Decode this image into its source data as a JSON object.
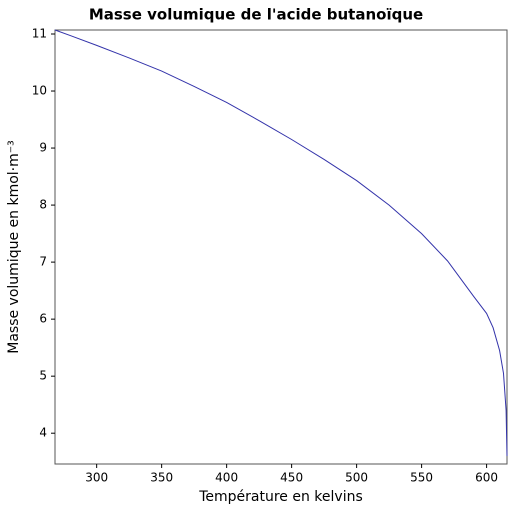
{
  "chart_data": {
    "type": "line",
    "title": "Masse volumique de l'acide butanoïque",
    "x_label": "Température en kelvins",
    "y_label": "Masse volumique en kmol·m⁻³",
    "x": [
      267.95,
      280,
      300,
      325,
      350,
      375,
      400,
      425,
      450,
      475,
      500,
      525,
      550,
      570,
      590,
      600,
      605,
      610,
      613,
      615,
      615.7
    ],
    "series": [
      {
        "color": "#3333aa",
        "values": [
          11.07,
          10.97,
          10.8,
          10.58,
          10.35,
          10.08,
          9.8,
          9.48,
          9.15,
          8.8,
          8.43,
          8.0,
          7.5,
          7.02,
          6.4,
          6.1,
          5.85,
          5.45,
          5.05,
          4.4,
          3.6
        ]
      }
    ],
    "xlim": [
      267.95,
      615.7
    ],
    "ylim": [
      3.46,
      11.07
    ],
    "xticks": [
      300,
      350,
      400,
      450,
      500,
      550,
      600
    ],
    "yticks": [
      4,
      5,
      6,
      7,
      8,
      9,
      10,
      11
    ]
  }
}
